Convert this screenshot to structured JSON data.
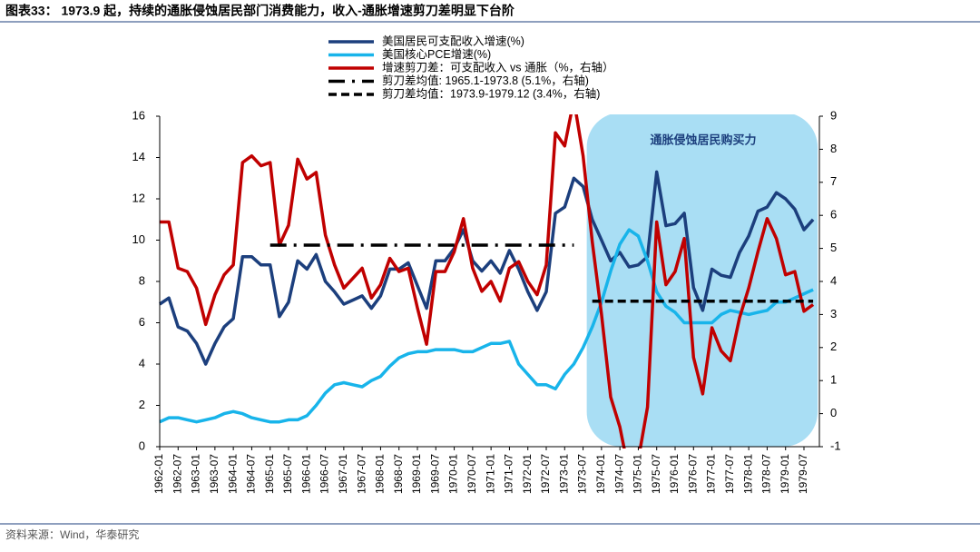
{
  "chart_data": {
    "type": "line",
    "title": "图表33： 1973.9 起，持续的通胀侵蚀居民部门消费能力，收入-通胀增速剪刀差明显下台阶",
    "source": "资料来源：Wind，华泰研究",
    "annotation": "通胀侵蚀居民购买力",
    "categories": [
      "1962-01",
      null,
      "1962-07",
      null,
      "1963-01",
      null,
      "1963-07",
      null,
      "1964-01",
      null,
      "1964-07",
      null,
      "1965-01",
      null,
      "1965-07",
      null,
      "1966-01",
      null,
      "1966-07",
      null,
      "1967-01",
      null,
      "1967-07",
      null,
      "1968-01",
      null,
      "1968-07",
      null,
      "1969-01",
      null,
      "1969-07",
      null,
      "1970-01",
      null,
      "1970-07",
      null,
      "1971-01",
      null,
      "1971-07",
      null,
      "1972-01",
      null,
      "1972-07",
      null,
      "1973-01",
      null,
      "1973-07",
      null,
      "1974-01",
      null,
      "1974-07",
      null,
      "1975-01",
      null,
      "1975-07",
      null,
      "1976-01",
      null,
      "1976-07",
      null,
      "1977-01",
      null,
      "1977-07",
      null,
      "1978-01",
      null,
      "1978-07",
      null,
      "1979-01",
      null,
      "1979-07",
      null
    ],
    "ylim": [
      0,
      16
    ],
    "yticks": [
      0,
      2,
      4,
      6,
      8,
      10,
      12,
      14,
      16
    ],
    "y2lim": [
      -1,
      9
    ],
    "y2ticks": [
      -1,
      0,
      1,
      2,
      3,
      4,
      5,
      6,
      7,
      8,
      9
    ],
    "series": [
      {
        "name": "美国居民可支配收入增速(%)",
        "color": "#1c3f7d",
        "width": 3.5,
        "values": [
          6.9,
          7.2,
          5.8,
          5.6,
          5.0,
          4.0,
          5.0,
          5.8,
          6.2,
          9.2,
          9.2,
          8.8,
          8.8,
          6.3,
          7.0,
          9.0,
          8.6,
          9.3,
          8.0,
          7.5,
          6.9,
          7.1,
          7.3,
          6.7,
          7.3,
          8.6,
          8.6,
          8.9,
          7.8,
          6.7,
          9.0,
          9.0,
          9.6,
          10.5,
          9.0,
          8.5,
          9.0,
          8.4,
          9.5,
          8.6,
          7.5,
          6.6,
          7.5,
          11.3,
          11.6,
          13.0,
          12.6,
          11.0,
          10.0,
          9.0,
          9.4,
          8.7,
          8.8,
          9.2,
          13.3,
          10.7,
          10.8,
          11.3,
          7.7,
          6.6,
          8.6,
          8.3,
          8.2,
          9.4,
          10.2,
          11.4,
          11.6,
          12.3,
          12.0,
          11.5,
          10.5,
          11.0
        ]
      },
      {
        "name": "美国核心PCE增速(%)",
        "color": "#18b4ea",
        "width": 3.5,
        "values": [
          1.2,
          1.4,
          1.4,
          1.3,
          1.2,
          1.3,
          1.4,
          1.6,
          1.7,
          1.6,
          1.4,
          1.3,
          1.2,
          1.2,
          1.3,
          1.3,
          1.5,
          2.0,
          2.6,
          3.0,
          3.1,
          3.0,
          2.9,
          3.2,
          3.4,
          3.9,
          4.3,
          4.5,
          4.6,
          4.6,
          4.7,
          4.7,
          4.7,
          4.6,
          4.6,
          4.8,
          5.0,
          5.0,
          5.1,
          4.0,
          3.5,
          3.0,
          3.0,
          2.8,
          3.5,
          4.0,
          4.8,
          5.8,
          7.0,
          8.5,
          9.8,
          10.5,
          10.2,
          9.0,
          7.5,
          6.8,
          6.5,
          6.0,
          6.0,
          6.0,
          6.0,
          6.4,
          6.6,
          6.5,
          6.4,
          6.5,
          6.6,
          7.0,
          7.0,
          7.2,
          7.4,
          7.6
        ]
      },
      {
        "name": "增速剪刀差：可支配收入 vs 通胀（%，右轴）",
        "color": "#c00000",
        "width": 3.5,
        "axis": "y2",
        "values": [
          5.8,
          5.8,
          4.4,
          4.3,
          3.8,
          2.7,
          3.6,
          4.2,
          4.5,
          7.6,
          7.8,
          7.5,
          7.6,
          5.1,
          5.7,
          7.7,
          7.1,
          7.3,
          5.4,
          4.5,
          3.8,
          4.1,
          4.4,
          3.5,
          3.9,
          4.7,
          4.3,
          4.4,
          3.2,
          2.1,
          4.3,
          4.3,
          4.9,
          5.9,
          4.4,
          3.7,
          4.0,
          3.4,
          4.4,
          4.6,
          4.0,
          3.6,
          4.5,
          8.5,
          8.1,
          9.5,
          7.8,
          5.2,
          3.0,
          0.5,
          -0.4,
          -1.8,
          -1.4,
          0.2,
          5.8,
          3.9,
          4.3,
          5.3,
          1.7,
          0.6,
          2.6,
          1.9,
          1.6,
          2.9,
          3.8,
          4.9,
          5.9,
          5.3,
          4.2,
          4.3,
          3.1,
          3.3
        ]
      },
      {
        "name": "剪刀差均值: 1965.1-1973.8 (5.1%，右轴)",
        "color": "#000000",
        "width": 3.5,
        "axis": "y2",
        "dash": "18 8 3 8",
        "values": [
          null,
          null,
          null,
          null,
          null,
          null,
          null,
          null,
          null,
          null,
          null,
          null,
          5.1,
          5.1,
          5.1,
          5.1,
          5.1,
          5.1,
          5.1,
          5.1,
          5.1,
          5.1,
          5.1,
          5.1,
          5.1,
          5.1,
          5.1,
          5.1,
          5.1,
          5.1,
          5.1,
          5.1,
          5.1,
          5.1,
          5.1,
          5.1,
          5.1,
          5.1,
          5.1,
          5.1,
          5.1,
          5.1,
          5.1,
          5.1,
          5.1,
          5.1,
          null,
          null,
          null,
          null,
          null,
          null,
          null,
          null,
          null,
          null,
          null,
          null,
          null,
          null,
          null,
          null,
          null,
          null,
          null,
          null,
          null,
          null,
          null,
          null,
          null,
          null
        ]
      },
      {
        "name": "剪刀差均值：1973.9-1979.12 (3.4%，右轴)",
        "color": "#000000",
        "width": 3.5,
        "axis": "y2",
        "dash": "9 5",
        "values": [
          null,
          null,
          null,
          null,
          null,
          null,
          null,
          null,
          null,
          null,
          null,
          null,
          null,
          null,
          null,
          null,
          null,
          null,
          null,
          null,
          null,
          null,
          null,
          null,
          null,
          null,
          null,
          null,
          null,
          null,
          null,
          null,
          null,
          null,
          null,
          null,
          null,
          null,
          null,
          null,
          null,
          null,
          null,
          null,
          null,
          null,
          null,
          3.4,
          3.4,
          3.4,
          3.4,
          3.4,
          3.4,
          3.4,
          3.4,
          3.4,
          3.4,
          3.4,
          3.4,
          3.4,
          3.4,
          3.4,
          3.4,
          3.4,
          3.4,
          3.4,
          3.4,
          3.4,
          3.4,
          3.4,
          3.4,
          3.4
        ]
      }
    ]
  }
}
